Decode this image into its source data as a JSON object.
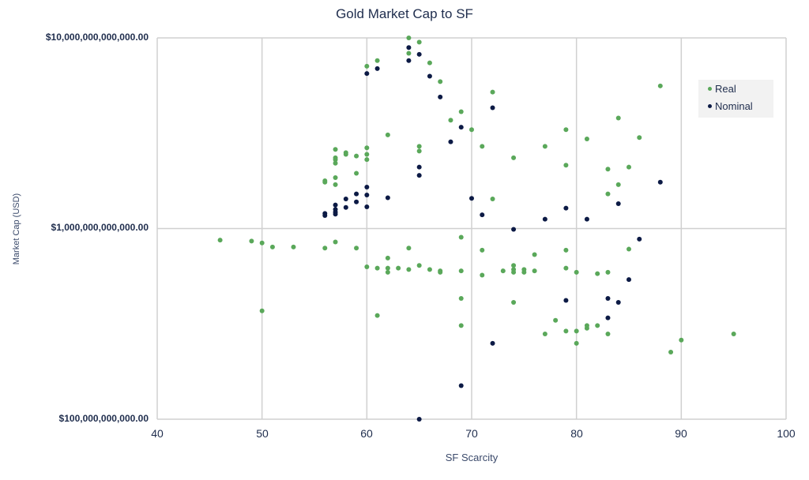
{
  "chart_data": {
    "type": "scatter",
    "title": "Gold Market Cap to SF",
    "xlabel": "SF Scarcity",
    "ylabel": "Market Cap (USD)",
    "xlim": [
      40,
      100
    ],
    "ylim": [
      100000000000,
      10000000000000
    ],
    "yscale": "log",
    "grid": true,
    "legend_position": "upper right (inside)",
    "x_ticks": [
      "40",
      "50",
      "60",
      "70",
      "80",
      "90",
      "100"
    ],
    "y_ticks": [
      "$100,000,000,000.00",
      "$1,000,000,000,000.00",
      "$10,000,000,000,000.00"
    ],
    "series": [
      {
        "name": "Real",
        "color": "#5aa85a",
        "points": [
          [
            64,
            10000000000000
          ],
          [
            65,
            9500000000000
          ],
          [
            64,
            8300000000000
          ],
          [
            61,
            7600000000000
          ],
          [
            60,
            7100000000000
          ],
          [
            66,
            7400000000000
          ],
          [
            67,
            5900000000000
          ],
          [
            72,
            5200000000000
          ],
          [
            88,
            5600000000000
          ],
          [
            69,
            4100000000000
          ],
          [
            84,
            3800000000000
          ],
          [
            68,
            3700000000000
          ],
          [
            70,
            3300000000000
          ],
          [
            79,
            3300000000000
          ],
          [
            62,
            3100000000000
          ],
          [
            86,
            3000000000000
          ],
          [
            81,
            2950000000000
          ],
          [
            71,
            2700000000000
          ],
          [
            77,
            2700000000000
          ],
          [
            65,
            2700000000000
          ],
          [
            65,
            2550000000000
          ],
          [
            57,
            2600000000000
          ],
          [
            60,
            2650000000000
          ],
          [
            58,
            2500000000000
          ],
          [
            58,
            2450000000000
          ],
          [
            59,
            2400000000000
          ],
          [
            60,
            2450000000000
          ],
          [
            57,
            2350000000000
          ],
          [
            57,
            2300000000000
          ],
          [
            74,
            2350000000000
          ],
          [
            60,
            2300000000000
          ],
          [
            57,
            2200000000000
          ],
          [
            79,
            2150000000000
          ],
          [
            85,
            2100000000000
          ],
          [
            83,
            2050000000000
          ],
          [
            59,
            1950000000000
          ],
          [
            57,
            1850000000000
          ],
          [
            56,
            1780000000000
          ],
          [
            56,
            1750000000000
          ],
          [
            57,
            1700000000000
          ],
          [
            84,
            1700000000000
          ],
          [
            83,
            1520000000000
          ],
          [
            72,
            1430000000000
          ],
          [
            46,
            870000000000
          ],
          [
            49,
            860000000000
          ],
          [
            50,
            840000000000
          ],
          [
            51,
            800000000000
          ],
          [
            53,
            800000000000
          ],
          [
            56,
            790000000000
          ],
          [
            57,
            850000000000
          ],
          [
            59,
            790000000000
          ],
          [
            64,
            790000000000
          ],
          [
            69,
            900000000000
          ],
          [
            71,
            770000000000
          ],
          [
            79,
            770000000000
          ],
          [
            85,
            780000000000
          ],
          [
            76,
            730000000000
          ],
          [
            62,
            700000000000
          ],
          [
            60,
            630000000000
          ],
          [
            61,
            620000000000
          ],
          [
            62,
            620000000000
          ],
          [
            63,
            620000000000
          ],
          [
            64,
            610000000000
          ],
          [
            65,
            640000000000
          ],
          [
            66,
            610000000000
          ],
          [
            67,
            600000000000
          ],
          [
            62,
            590000000000
          ],
          [
            67,
            590000000000
          ],
          [
            69,
            600000000000
          ],
          [
            73,
            600000000000
          ],
          [
            74,
            640000000000
          ],
          [
            74,
            610000000000
          ],
          [
            74,
            590000000000
          ],
          [
            75,
            610000000000
          ],
          [
            75,
            590000000000
          ],
          [
            76,
            600000000000
          ],
          [
            79,
            620000000000
          ],
          [
            80,
            590000000000
          ],
          [
            82,
            580000000000
          ],
          [
            83,
            590000000000
          ],
          [
            71,
            570000000000
          ],
          [
            69,
            430000000000
          ],
          [
            74,
            410000000000
          ],
          [
            50,
            370000000000
          ],
          [
            61,
            350000000000
          ],
          [
            69,
            310000000000
          ],
          [
            78,
            330000000000
          ],
          [
            81,
            310000000000
          ],
          [
            81,
            300000000000
          ],
          [
            82,
            310000000000
          ],
          [
            77,
            280000000000
          ],
          [
            79,
            290000000000
          ],
          [
            80,
            290000000000
          ],
          [
            83,
            280000000000
          ],
          [
            95,
            280000000000
          ],
          [
            80,
            250000000000
          ],
          [
            90,
            260000000000
          ],
          [
            89,
            225000000000
          ]
        ]
      },
      {
        "name": "Nominal",
        "color": "#0c1a45",
        "points": [
          [
            64,
            8900000000000
          ],
          [
            65,
            8200000000000
          ],
          [
            61,
            6900000000000
          ],
          [
            60,
            6500000000000
          ],
          [
            64,
            7600000000000
          ],
          [
            66,
            6300000000000
          ],
          [
            67,
            4900000000000
          ],
          [
            72,
            4300000000000
          ],
          [
            69,
            3400000000000
          ],
          [
            68,
            2850000000000
          ],
          [
            65,
            2100000000000
          ],
          [
            65,
            1900000000000
          ],
          [
            60,
            1650000000000
          ],
          [
            88,
            1750000000000
          ],
          [
            59,
            1520000000000
          ],
          [
            60,
            1500000000000
          ],
          [
            62,
            1450000000000
          ],
          [
            70,
            1440000000000
          ],
          [
            58,
            1430000000000
          ],
          [
            59,
            1380000000000
          ],
          [
            84,
            1350000000000
          ],
          [
            57,
            1330000000000
          ],
          [
            58,
            1290000000000
          ],
          [
            60,
            1300000000000
          ],
          [
            79,
            1280000000000
          ],
          [
            57,
            1260000000000
          ],
          [
            57,
            1220000000000
          ],
          [
            56,
            1200000000000
          ],
          [
            57,
            1190000000000
          ],
          [
            56,
            1170000000000
          ],
          [
            71,
            1180000000000
          ],
          [
            77,
            1120000000000
          ],
          [
            81,
            1120000000000
          ],
          [
            74,
            990000000000
          ],
          [
            86,
            880000000000
          ],
          [
            85,
            540000000000
          ],
          [
            79,
            420000000000
          ],
          [
            83,
            430000000000
          ],
          [
            84,
            410000000000
          ],
          [
            83,
            340000000000
          ],
          [
            72,
            250000000000
          ],
          [
            69,
            150000000000
          ],
          [
            65,
            100000000000
          ]
        ]
      }
    ]
  },
  "legend": {
    "items": [
      {
        "label": "Real",
        "color": "#5aa85a"
      },
      {
        "label": "Nominal",
        "color": "#0c1a45"
      }
    ]
  }
}
